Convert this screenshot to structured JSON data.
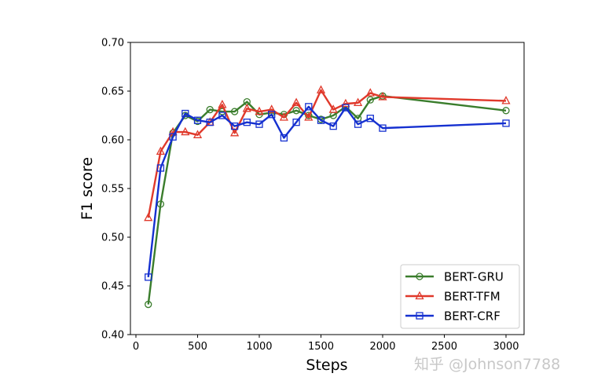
{
  "chart_data": {
    "type": "line",
    "title": "",
    "xlabel": "Steps",
    "ylabel": "F1 score",
    "xlim": [
      -50,
      3150
    ],
    "ylim": [
      0.4,
      0.7
    ],
    "xticks": [
      0,
      500,
      1000,
      1500,
      2000,
      2500,
      3000
    ],
    "yticks": [
      0.4,
      0.45,
      0.5,
      0.55,
      0.6,
      0.65,
      0.7
    ],
    "xtick_labels": [
      "0",
      "500",
      "1000",
      "1500",
      "2000",
      "2500",
      "3000"
    ],
    "ytick_labels": [
      "0.40",
      "0.45",
      "0.50",
      "0.55",
      "0.60",
      "0.65",
      "0.70"
    ],
    "grid": false,
    "legend_position": "lower right",
    "x": [
      100,
      200,
      300,
      400,
      500,
      600,
      700,
      800,
      900,
      1000,
      1100,
      1200,
      1300,
      1400,
      1500,
      1600,
      1700,
      1800,
      1900,
      2000,
      3000
    ],
    "series": [
      {
        "name": "BERT-GRU",
        "color": "#3a7d2c",
        "marker": "circle",
        "values": [
          0.431,
          0.534,
          0.607,
          0.625,
          0.619,
          0.631,
          0.629,
          0.629,
          0.639,
          0.626,
          0.628,
          0.626,
          0.63,
          0.625,
          0.621,
          0.625,
          0.634,
          0.622,
          0.641,
          0.645,
          0.63
        ]
      },
      {
        "name": "BERT-TFM",
        "color": "#e0392b",
        "marker": "triangle",
        "values": [
          0.52,
          0.588,
          0.608,
          0.608,
          0.605,
          0.618,
          0.636,
          0.607,
          0.632,
          0.629,
          0.631,
          0.623,
          0.638,
          0.623,
          0.651,
          0.631,
          0.637,
          0.638,
          0.648,
          0.644,
          0.64
        ]
      },
      {
        "name": "BERT-CRF",
        "color": "#1530d0",
        "marker": "square",
        "values": [
          0.459,
          0.571,
          0.603,
          0.627,
          0.62,
          0.618,
          0.625,
          0.614,
          0.618,
          0.616,
          0.626,
          0.602,
          0.618,
          0.634,
          0.62,
          0.614,
          0.633,
          0.616,
          0.622,
          0.612,
          0.617
        ]
      }
    ]
  },
  "watermark": {
    "text": "知乎 @Johnson7788"
  }
}
